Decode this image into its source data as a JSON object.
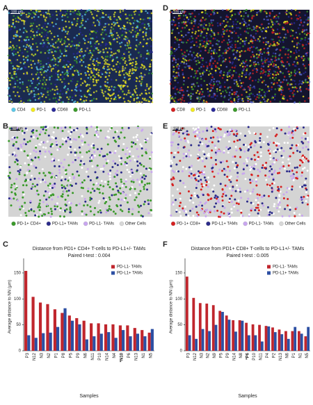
{
  "panels": {
    "A": {
      "letter": "A",
      "scale": "100 μm",
      "legend": [
        {
          "label": "CD4",
          "color": "#5bc8e8"
        },
        {
          "label": "PD-1",
          "color": "#f2ea1d"
        },
        {
          "label": "CD68",
          "color": "#2a2a9a"
        },
        {
          "label": "PD-L1",
          "color": "#3a9a2a"
        }
      ]
    },
    "B": {
      "letter": "B",
      "scale": "100 μm",
      "legend": [
        {
          "label": "PD-1+ CD4+",
          "color": "#3a9a2a"
        },
        {
          "label": "PD-L1+ TAMs",
          "color": "#2a2a8a"
        },
        {
          "label": "PD-L1- TAMs",
          "color": "#c9a6f0"
        },
        {
          "label": "Other Cells",
          "color": "#d8d8d8"
        }
      ]
    },
    "D": {
      "letter": "D",
      "scale": "100 μm",
      "legend": [
        {
          "label": "CD8",
          "color": "#d62020"
        },
        {
          "label": "PD-1",
          "color": "#f2ea1d"
        },
        {
          "label": "CD68",
          "color": "#2a2a9a"
        },
        {
          "label": "PD-L1",
          "color": "#3a9a2a"
        }
      ]
    },
    "E": {
      "letter": "E",
      "scale": "100 μm",
      "legend": [
        {
          "label": "PD-1+ CD8+",
          "color": "#d62020"
        },
        {
          "label": "PD-L1+ TAMs",
          "color": "#2a2a8a"
        },
        {
          "label": "PD-L1- TAMs",
          "color": "#c9a6f0"
        },
        {
          "label": "Other Cells",
          "color": "#d8d8d8"
        }
      ]
    },
    "C": {
      "letter": "C"
    },
    "F": {
      "letter": "F"
    }
  },
  "chart_data": [
    {
      "type": "bar",
      "title": "Distance from PD1+ CD4+ T-cells to PD-L1+/- TAMs",
      "subtitle": "Paired t-test : 0.004",
      "x_label": "Samples",
      "y_label": "Average distance to NN (μm)",
      "legend": "upper right",
      "categories": [
        "P3",
        "N12",
        "N3",
        "N2",
        "P1",
        "P8",
        "P5",
        "P9",
        "N6",
        "N11",
        "P10",
        "N14",
        "N4",
        "*N10",
        "P6",
        "N13",
        "N1",
        "N5"
      ],
      "series": [
        {
          "name": "PD-L1- TAMs",
          "color": "#c0262d",
          "values": [
            154,
            104,
            93,
            90,
            80,
            73,
            68,
            63,
            58,
            53,
            53,
            51,
            51,
            49,
            49,
            44,
            40,
            35
          ]
        },
        {
          "name": "PD-L1+ TAMs",
          "color": "#2c4fa3",
          "values": [
            30,
            25,
            34,
            35,
            46,
            82,
            58,
            51,
            22,
            28,
            33,
            36,
            25,
            40,
            28,
            33,
            28,
            42
          ]
        }
      ],
      "ylim": [
        0,
        170
      ],
      "yticks": [
        0,
        50,
        100,
        150
      ]
    },
    {
      "type": "bar",
      "title": "Distance from PD1+ CD8+ T-cells to PD-L1+/- TAMs",
      "subtitle": "Paired t-test : 0.005",
      "x_label": "Samples",
      "y_label": "Average distance to NN (μm)",
      "legend": "upper right",
      "categories": [
        "P3",
        "N12",
        "N3",
        "N2",
        "N9",
        "P5",
        "P9",
        "N14",
        "N8",
        "*P6",
        "P10",
        "N11",
        "P4",
        "P2",
        "N13",
        "N6",
        "P1",
        "N1",
        "N5"
      ],
      "series": [
        {
          "name": "PD-L1- TAMs",
          "color": "#c0262d",
          "values": [
            143,
            102,
            92,
            91,
            88,
            77,
            68,
            59,
            59,
            54,
            51,
            50,
            48,
            45,
            41,
            38,
            38,
            38,
            28
          ]
        },
        {
          "name": "PD-L1+ TAMs",
          "color": "#2c4fa3",
          "values": [
            30,
            23,
            42,
            38,
            50,
            75,
            60,
            37,
            58,
            30,
            30,
            18,
            47,
            36,
            32,
            23,
            46,
            33,
            46
          ]
        }
      ],
      "ylim": [
        0,
        170
      ],
      "yticks": [
        0,
        50,
        100,
        150
      ]
    }
  ]
}
